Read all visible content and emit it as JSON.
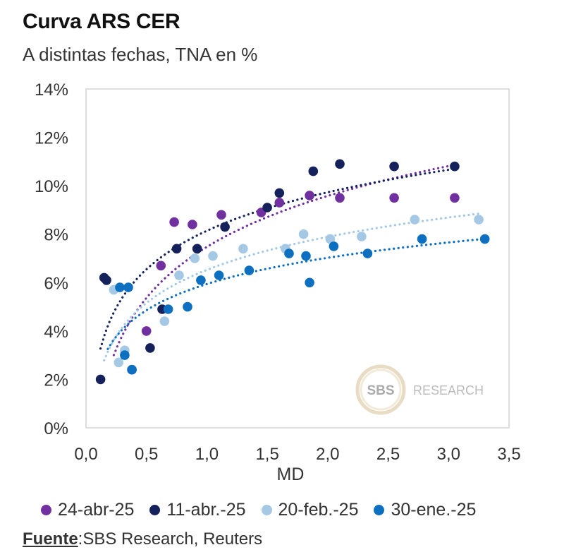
{
  "title": "Curva ARS CER",
  "subtitle": "A distintas fechas, TNA en %",
  "source": {
    "label": "Fuente",
    "text": ":SBS Research, Reuters"
  },
  "watermark": {
    "circle_text": "SBS",
    "text": "RESEARCH"
  },
  "chart_data": {
    "type": "scatter",
    "title": "Curva ARS CER",
    "subtitle": "A distintas fechas, TNA en %",
    "xlabel": "MD",
    "ylabel": "",
    "xlim": [
      0,
      3.5
    ],
    "ylim": [
      0,
      14
    ],
    "xticks": [
      "0,0",
      "0,5",
      "1,0",
      "1,5",
      "2,0",
      "2,5",
      "3,0",
      "3,5"
    ],
    "yticks": [
      "0%",
      "2%",
      "4%",
      "6%",
      "8%",
      "10%",
      "12%",
      "14%"
    ],
    "grid": false,
    "legend_position": "bottom",
    "trendline": "logarithmic dotted",
    "series": [
      {
        "name": "24-abr-25",
        "color": "#7030a0",
        "x": [
          0.38,
          0.5,
          0.62,
          0.73,
          0.88,
          1.12,
          1.45,
          1.6,
          1.85,
          2.1,
          2.55,
          3.05
        ],
        "y": [
          2.4,
          4.0,
          6.7,
          8.5,
          8.4,
          8.8,
          8.9,
          9.3,
          9.6,
          9.5,
          9.5,
          9.5
        ],
        "trend": {
          "x_start": 0.23,
          "x_end": 3.05
        }
      },
      {
        "name": "11-abr.-25",
        "color": "#14215a",
        "x": [
          0.12,
          0.15,
          0.17,
          0.53,
          0.63,
          0.75,
          0.92,
          1.15,
          1.5,
          1.6,
          1.88,
          2.1,
          2.55,
          3.05
        ],
        "y": [
          2.0,
          6.2,
          6.1,
          3.3,
          4.9,
          7.4,
          7.4,
          8.3,
          9.1,
          9.7,
          10.6,
          10.9,
          10.8,
          10.8
        ],
        "trend": {
          "x_start": 0.12,
          "x_end": 3.05
        }
      },
      {
        "name": "20-feb.-25",
        "color": "#a5c8e4",
        "x": [
          0.23,
          0.27,
          0.32,
          0.65,
          0.77,
          0.9,
          1.05,
          1.3,
          1.65,
          1.8,
          2.02,
          2.28,
          2.72,
          3.25
        ],
        "y": [
          5.7,
          2.7,
          3.2,
          4.4,
          6.3,
          7.0,
          7.1,
          7.4,
          7.4,
          8.0,
          7.8,
          7.9,
          8.6,
          8.6
        ],
        "trend": {
          "x_start": 0.15,
          "x_end": 3.25
        }
      },
      {
        "name": "30-ene.-25",
        "color": "#0d6fc0",
        "x": [
          0.28,
          0.32,
          0.35,
          0.38,
          0.68,
          0.84,
          0.95,
          1.1,
          1.35,
          1.68,
          1.82,
          1.85,
          2.05,
          2.33,
          2.78,
          3.3
        ],
        "y": [
          5.8,
          3.0,
          5.8,
          2.4,
          4.9,
          5.0,
          6.1,
          6.3,
          6.5,
          7.2,
          7.1,
          6.0,
          7.5,
          7.2,
          7.8,
          7.8
        ],
        "trend": {
          "x_start": 0.18,
          "x_end": 3.3
        }
      }
    ]
  }
}
